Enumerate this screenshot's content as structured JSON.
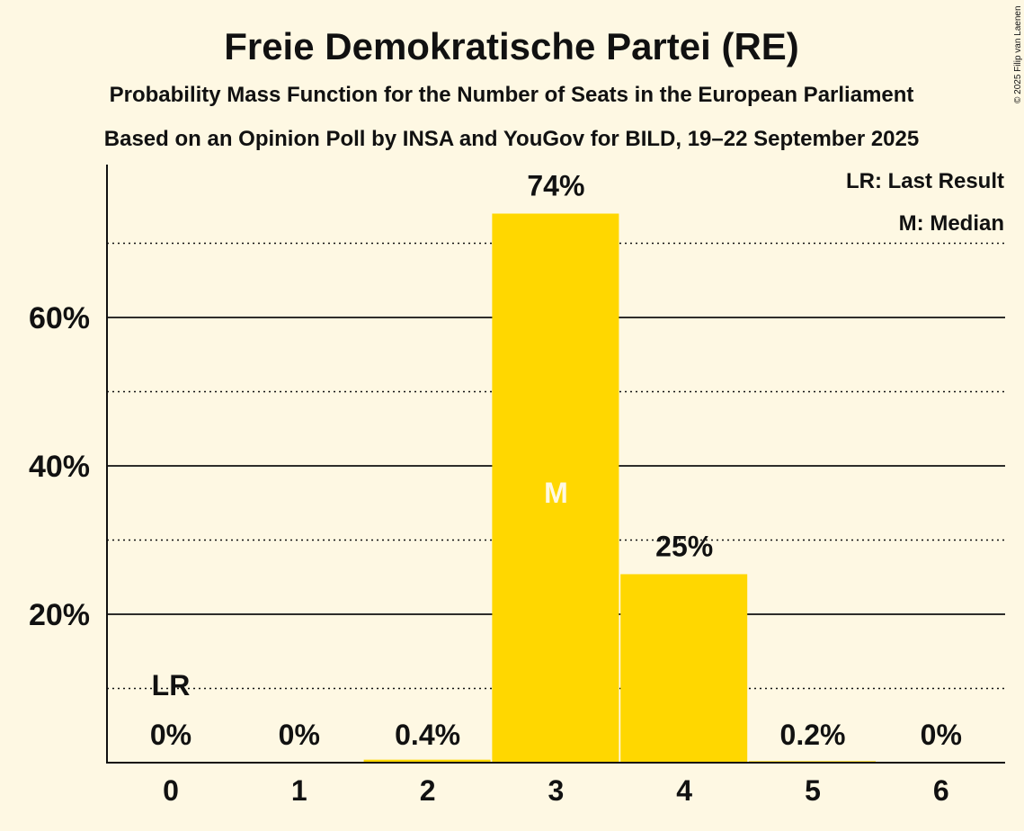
{
  "chart_data": {
    "type": "bar",
    "title": "Freie Demokratische Partei (RE)",
    "subtitle": "Probability Mass Function for the Number of Seats in the European Parliament",
    "subtitle2": "Based on an Opinion Poll by INSA and YouGov for BILD, 19–22 September 2025",
    "copyright": "© 2025 Filip van Laenen",
    "categories": [
      "0",
      "1",
      "2",
      "3",
      "4",
      "5",
      "6"
    ],
    "values": [
      0,
      0,
      0.4,
      74,
      25.4,
      0.2,
      0
    ],
    "labels": [
      "0%",
      "0%",
      "0.4%",
      "74%",
      "25%",
      "0.2%",
      "0%"
    ],
    "ylim": [
      0,
      80
    ],
    "yticks": [
      {
        "v": 20,
        "label": "20%"
      },
      {
        "v": 40,
        "label": "40%"
      },
      {
        "v": 60,
        "label": "60%"
      }
    ],
    "minor_gridlines": [
      10,
      30,
      50,
      70
    ],
    "last_result_index": 0,
    "last_result_label": "LR",
    "median_index": 3,
    "median_label": "M",
    "legend": [
      "LR: Last Result",
      "M: Median"
    ],
    "legend_position": "top-right",
    "bar_color": "#FFD700",
    "background": "#FEF8E3"
  }
}
